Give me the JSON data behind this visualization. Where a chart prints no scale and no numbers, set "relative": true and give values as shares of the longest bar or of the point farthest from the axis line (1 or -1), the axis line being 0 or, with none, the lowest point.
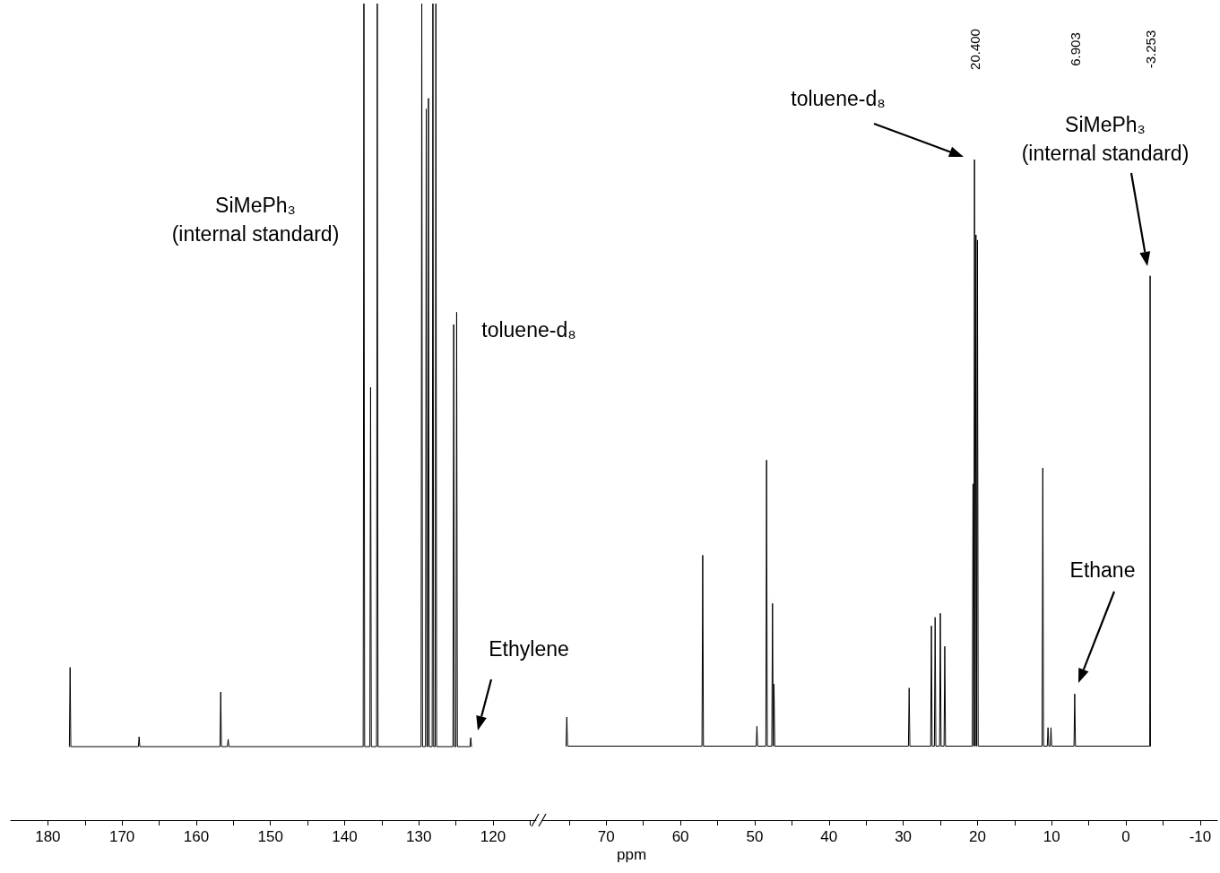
{
  "chart_data": [
    {
      "type": "line",
      "relative": true,
      "xlim": [
        185,
        114.2
      ],
      "xticks": [
        180,
        {
          "value": 175,
          "label": null
        },
        170,
        {
          "value": 165,
          "label": null
        },
        160,
        {
          "value": 155,
          "label": null
        },
        150,
        {
          "value": 145,
          "label": null
        },
        140,
        {
          "value": 135,
          "label": null
        },
        130,
        {
          "value": 125,
          "label": null
        },
        120,
        {
          "value": 115,
          "label": null
        }
      ],
      "series": [
        {
          "color": "#000000",
          "x": [
            177.1,
            177.0,
            176.9,
            167.8,
            167.7,
            167.6,
            156.8,
            156.7,
            156.6,
            155.8,
            155.7,
            155.6,
            137.5,
            137.4,
            137.3,
            136.6,
            136.5,
            136.4,
            135.7,
            135.6,
            135.5,
            129.7,
            129.6,
            129.5,
            129.1,
            129.0,
            128.9,
            128.8,
            128.7,
            128.6,
            128.2,
            128.1,
            128.0,
            127.8,
            127.7,
            127.6,
            125.4,
            125.3,
            125.2,
            125.0,
            124.9,
            124.8,
            123.1,
            123.0,
            122.9
          ],
          "values": [
            0.09,
            0.187,
            0.09,
            0.09,
            0.102,
            0.09,
            0.09,
            0.157,
            0.09,
            0.09,
            0.099,
            0.09,
            0.09,
            1,
            0.09,
            0.09,
            0.53,
            0.09,
            0.09,
            1,
            0.09,
            0.09,
            1,
            0.09,
            0.09,
            0.871,
            0.09,
            0.09,
            0.884,
            0.09,
            0.09,
            1,
            0.09,
            0.09,
            1,
            0.09,
            0.09,
            0.607,
            0.09,
            0.09,
            0.622,
            0.09,
            0.09,
            0.101,
            0.09
          ]
        }
      ],
      "annotations": [
        "SiMePh₃\n(internal standard)",
        "toluene-d₈",
        "Ethylene"
      ]
    },
    {
      "type": "line",
      "relative": true,
      "xlim": [
        78.6,
        -12.3
      ],
      "xlabel": "ppm",
      "xticks": [
        {
          "value": 75,
          "label": null
        },
        70,
        {
          "value": 65,
          "label": null
        },
        60,
        {
          "value": 55,
          "label": null
        },
        50,
        {
          "value": 45,
          "label": null
        },
        40,
        {
          "value": 35,
          "label": null
        },
        30,
        {
          "value": 25,
          "label": null
        },
        20,
        {
          "value": 15,
          "label": null
        },
        10,
        {
          "value": 5,
          "label": null
        },
        0,
        {
          "value": -5,
          "label": null
        },
        -10
      ],
      "series": [
        {
          "color": "#000000",
          "x": [
            75.4,
            75.3,
            75.2,
            57.1,
            57.0,
            56.9,
            49.8,
            49.7,
            49.6,
            48.5,
            48.4,
            48.3,
            47.7,
            47.6,
            47.5,
            47.5,
            47.4,
            47.3,
            29.3,
            29.2,
            29.1,
            26.3,
            26.2,
            26.1,
            25.8,
            25.7,
            25.6,
            25.1,
            25.0,
            24.9,
            24.5,
            24.4,
            24.3,
            20.7,
            20.6,
            20.5,
            20.5,
            20.4,
            20.3,
            20.3,
            20.2,
            20.1,
            20.1,
            20.0,
            19.9,
            11.3,
            11.2,
            11.1,
            10.6,
            10.5,
            10.4,
            10.2,
            10.1,
            10.0,
            7.0,
            6.903,
            6.8,
            -3.2,
            -3.253,
            -3.3
          ],
          "values": [
            0.112,
            0.156,
            0.112,
            0.112,
            0.401,
            0.112,
            0.112,
            0.142,
            0.112,
            0.112,
            0.545,
            0.112,
            0.112,
            0.328,
            0.112,
            0.112,
            0.206,
            0.112,
            0.112,
            0.2,
            0.112,
            0.112,
            0.294,
            0.112,
            0.112,
            0.307,
            0.112,
            0.112,
            0.313,
            0.112,
            0.112,
            0.263,
            0.112,
            0.112,
            0.509,
            0.112,
            0.112,
            1,
            0.112,
            0.112,
            0.886,
            0.112,
            0.112,
            0.878,
            0.112,
            0.112,
            0.533,
            0.112,
            0.112,
            0.14,
            0.112,
            0.112,
            0.14,
            0.112,
            0.112,
            0.191,
            0.112,
            0.112,
            0.824,
            0.112
          ]
        }
      ],
      "annotations": [
        "toluene-d₈",
        "SiMePh₃\n(internal standard)",
        "Ethane",
        "20.400",
        "6.903",
        "-3.253"
      ]
    }
  ]
}
